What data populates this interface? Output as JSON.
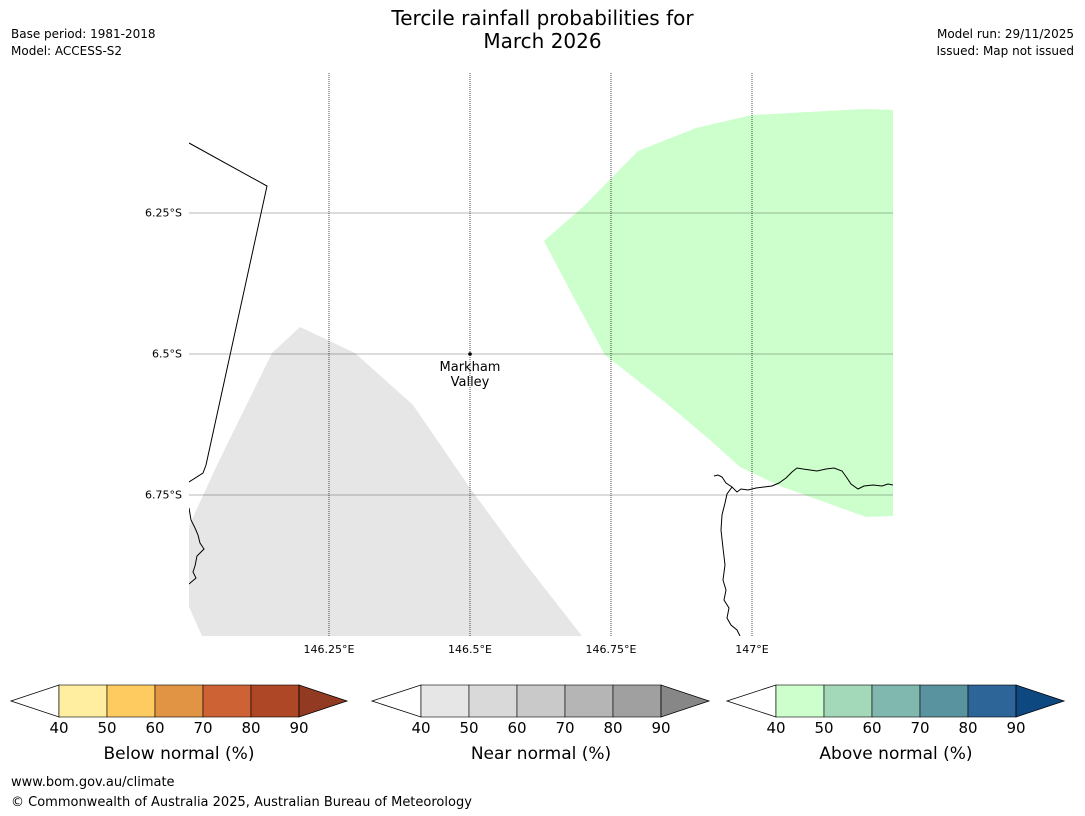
{
  "title_line1": "Tercile rainfall probabilities for",
  "title_line2": "March 2026",
  "meta_left": {
    "base_period": "Base period: 1981-2018",
    "model": "Model: ACCESS-S2"
  },
  "meta_right": {
    "model_run": "Model run: 29/11/2025",
    "issued": "Issued: Map not issued"
  },
  "map": {
    "latitude_labels": [
      "6.25°S",
      "6.5°S",
      "6.75°S"
    ],
    "longitude_labels": [
      "146.25°E",
      "146.5°E",
      "146.75°E",
      "147°E"
    ],
    "place": {
      "line1": "Markham",
      "line2": "Valley"
    },
    "colors": {
      "near_normal_region": "#e6e6e6",
      "above_normal_region": "#ccffcc",
      "coastline": "#000000"
    }
  },
  "colorbars": [
    {
      "name": "Below normal (%)",
      "ticks": [
        "40",
        "50",
        "60",
        "70",
        "80",
        "90"
      ],
      "colors": [
        "#ffeda0",
        "#fecb61",
        "#e29445",
        "#cd6234",
        "#ad4726",
        "#923a22"
      ]
    },
    {
      "name": "Near normal (%)",
      "ticks": [
        "40",
        "50",
        "60",
        "70",
        "80",
        "90"
      ],
      "colors": [
        "#e6e6e6",
        "#d9d9d9",
        "#c9c9c9",
        "#b5b5b5",
        "#a0a0a0",
        "#878787"
      ]
    },
    {
      "name": "Above normal (%)",
      "ticks": [
        "40",
        "50",
        "60",
        "70",
        "80",
        "90"
      ],
      "colors": [
        "#ccffcc",
        "#a3d8b8",
        "#80b8b0",
        "#5a93a0",
        "#2e6598",
        "#0d4880"
      ]
    }
  ],
  "footer": {
    "url": "www.bom.gov.au/climate",
    "copyright": "© Commonwealth of Australia 2025, Australian Bureau of Meteorology"
  }
}
